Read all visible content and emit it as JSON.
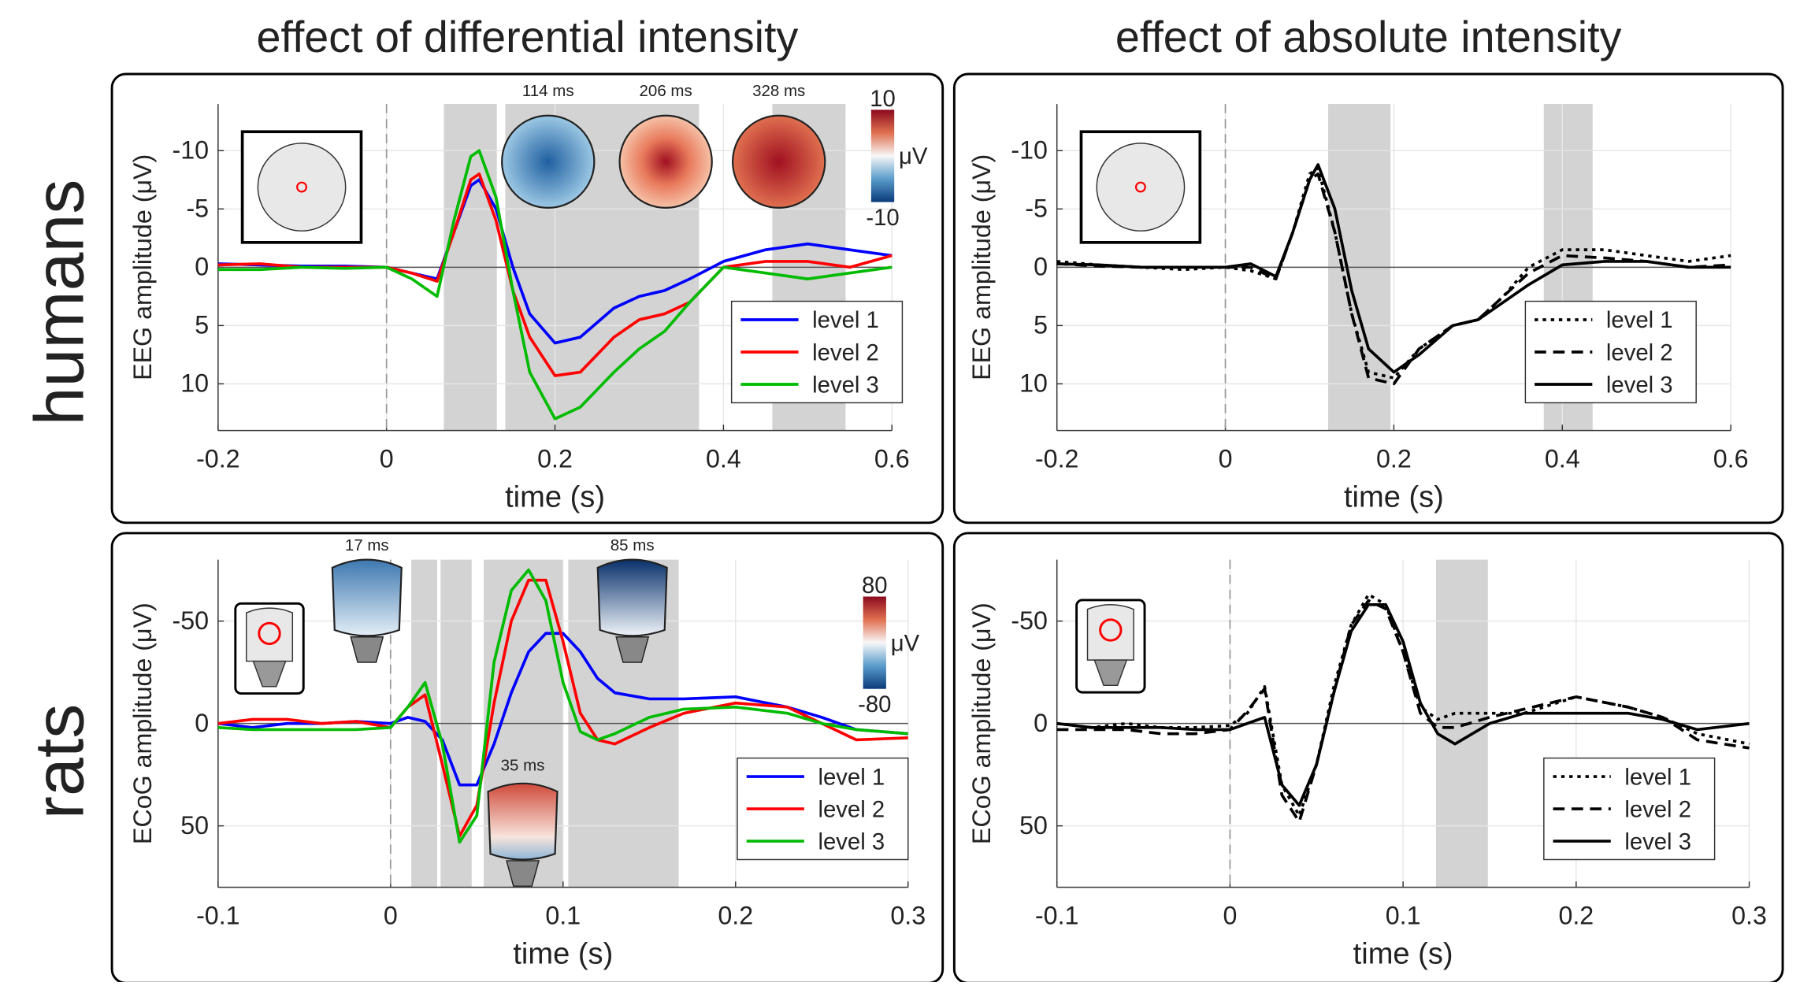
{
  "column_titles": [
    "effect of differential intensity",
    "effect of absolute intensity"
  ],
  "row_labels": [
    "humans",
    "rats"
  ],
  "chart_data": [
    {
      "type": "line",
      "xlabel": "time (s)",
      "ylabel": "EEG amplitude (μV)",
      "xlim": [
        -0.2,
        0.6
      ],
      "xticks": [
        -0.2,
        0,
        0.2,
        0.4,
        0.6
      ],
      "ylim": [
        -14,
        14
      ],
      "yticks": [
        -10,
        -5,
        0,
        5,
        10
      ],
      "y_inverted": true,
      "grid": true,
      "legend": "lower right",
      "shaded": [
        [
          0.068,
          0.131
        ],
        [
          0.141,
          0.371
        ],
        [
          0.458,
          0.545
        ]
      ],
      "annotations": [
        "114 ms",
        "206 ms",
        "328 ms"
      ],
      "colorbar": {
        "label": "μV",
        "ticks": [
          10,
          -10
        ]
      },
      "x": [
        -0.2,
        -0.15,
        -0.1,
        -0.05,
        0,
        0.03,
        0.06,
        0.08,
        0.1,
        0.11,
        0.13,
        0.15,
        0.17,
        0.2,
        0.23,
        0.27,
        0.3,
        0.33,
        0.36,
        0.4,
        0.45,
        0.5,
        0.55,
        0.6
      ],
      "series": [
        {
          "name": "level 1",
          "color": "#0000ff",
          "dash": "solid",
          "values": [
            -0.3,
            -0.2,
            -0.1,
            -0.1,
            0,
            0.5,
            1,
            -3,
            -7,
            -7.5,
            -5,
            0,
            4,
            6.5,
            6,
            3.5,
            2.5,
            2,
            1,
            -0.5,
            -1.5,
            -2,
            -1.5,
            -1
          ]
        },
        {
          "name": "level 2",
          "color": "#ff0000",
          "dash": "solid",
          "values": [
            -0.2,
            -0.3,
            0,
            0,
            0,
            0.5,
            1.2,
            -3,
            -7.5,
            -8,
            -4,
            2,
            6,
            9.3,
            9,
            6,
            4.5,
            4,
            3,
            0,
            -0.5,
            -0.5,
            0,
            -1
          ]
        },
        {
          "name": "level 3",
          "color": "#00bb00",
          "dash": "solid",
          "values": [
            0.2,
            0.2,
            0,
            0.1,
            0,
            1,
            2.5,
            -4,
            -9.5,
            -10,
            -6,
            2,
            9,
            13,
            12,
            9,
            7,
            5.5,
            3,
            0,
            0.5,
            1,
            0.5,
            0
          ]
        }
      ]
    },
    {
      "type": "line",
      "xlabel": "time (s)",
      "ylabel": "EEG amplitude (μV)",
      "xlim": [
        -0.2,
        0.6
      ],
      "xticks": [
        -0.2,
        0,
        0.2,
        0.4,
        0.6
      ],
      "ylim": [
        -14,
        14
      ],
      "yticks": [
        -10,
        -5,
        0,
        5,
        10
      ],
      "y_inverted": true,
      "grid": true,
      "legend": "lower right",
      "shaded": [
        [
          0.122,
          0.196
        ],
        [
          0.378,
          0.436
        ]
      ],
      "x": [
        -0.2,
        -0.15,
        -0.1,
        -0.05,
        0,
        0.03,
        0.06,
        0.08,
        0.1,
        0.11,
        0.13,
        0.15,
        0.17,
        0.2,
        0.23,
        0.27,
        0.3,
        0.33,
        0.36,
        0.4,
        0.45,
        0.5,
        0.55,
        0.6
      ],
      "series": [
        {
          "name": "level 1",
          "color": "#000000",
          "dash": "dotted",
          "values": [
            -0.5,
            -0.2,
            0,
            0.2,
            0,
            0.3,
            1,
            -3,
            -8,
            -8.5,
            -3,
            4,
            9,
            9.5,
            7,
            5,
            4.5,
            2.5,
            0,
            -1.5,
            -1.5,
            -1,
            -0.5,
            -1
          ]
        },
        {
          "name": "level 2",
          "color": "#000000",
          "dash": "dashed",
          "values": [
            -0.3,
            -0.1,
            0,
            0,
            0,
            0,
            1,
            -3,
            -7.5,
            -8,
            -3,
            4,
            9.5,
            10,
            7,
            5,
            4.5,
            2.5,
            0.5,
            -1,
            -0.8,
            -0.5,
            0,
            -0.2
          ]
        },
        {
          "name": "level 3",
          "color": "#000000",
          "dash": "solid",
          "values": [
            -0.3,
            -0.2,
            0,
            0,
            0,
            -0.3,
            0.8,
            -3,
            -7.5,
            -8.8,
            -5,
            2,
            7,
            9,
            7.5,
            5,
            4.5,
            3,
            1.5,
            -0.2,
            -0.5,
            -0.5,
            0,
            0
          ]
        }
      ]
    },
    {
      "type": "line",
      "xlabel": "time (s)",
      "ylabel": "ECoG amplitude (μV)",
      "xlim": [
        -0.1,
        0.3
      ],
      "xticks": [
        -0.1,
        0,
        0.1,
        0.2,
        0.3
      ],
      "ylim": [
        -80,
        80
      ],
      "yticks": [
        -50,
        0,
        50
      ],
      "y_inverted": true,
      "grid": true,
      "legend": "lower right",
      "shaded": [
        [
          0.012,
          0.027
        ],
        [
          0.029,
          0.047
        ],
        [
          0.054,
          0.1
        ],
        [
          0.103,
          0.167
        ]
      ],
      "annotations": [
        "17 ms",
        "85 ms",
        "35 ms"
      ],
      "colorbar": {
        "label": "μV",
        "ticks": [
          80,
          -80
        ]
      },
      "x": [
        -0.1,
        -0.08,
        -0.06,
        -0.04,
        -0.02,
        0,
        0.01,
        0.02,
        0.03,
        0.04,
        0.05,
        0.06,
        0.07,
        0.08,
        0.09,
        0.1,
        0.11,
        0.12,
        0.13,
        0.15,
        0.17,
        0.2,
        0.23,
        0.25,
        0.27,
        0.3
      ],
      "series": [
        {
          "name": "level 1",
          "color": "#0000ff",
          "dash": "solid",
          "values": [
            0,
            2,
            0,
            0,
            -1,
            0,
            -3,
            -1,
            8,
            30,
            30,
            10,
            -15,
            -35,
            -44,
            -44,
            -35,
            -22,
            -15,
            -12,
            -12,
            -13,
            -8,
            -3,
            3,
            5
          ]
        },
        {
          "name": "level 2",
          "color": "#ff0000",
          "dash": "solid",
          "values": [
            0,
            -2,
            -2,
            0,
            -1,
            2,
            -8,
            -14,
            20,
            55,
            40,
            -10,
            -50,
            -70,
            -70,
            -40,
            -5,
            8,
            10,
            2,
            -5,
            -10,
            -8,
            0,
            8,
            7
          ]
        },
        {
          "name": "level 3",
          "color": "#00bb00",
          "dash": "solid",
          "values": [
            2,
            3,
            3,
            3,
            3,
            2,
            -8,
            -20,
            10,
            58,
            45,
            -30,
            -65,
            -75,
            -60,
            -20,
            4,
            8,
            5,
            -3,
            -7,
            -8,
            -5,
            0,
            3,
            5
          ]
        }
      ]
    },
    {
      "type": "line",
      "xlabel": "time (s)",
      "ylabel": "ECoG amplitude (μV)",
      "xlim": [
        -0.1,
        0.3
      ],
      "xticks": [
        -0.1,
        0,
        0.1,
        0.2,
        0.3
      ],
      "ylim": [
        -80,
        80
      ],
      "yticks": [
        -50,
        0,
        50
      ],
      "y_inverted": true,
      "grid": true,
      "legend": "lower right",
      "shaded": [
        [
          0.119,
          0.149
        ]
      ],
      "x": [
        -0.1,
        -0.08,
        -0.06,
        -0.04,
        -0.02,
        0,
        0.01,
        0.02,
        0.03,
        0.04,
        0.05,
        0.06,
        0.07,
        0.08,
        0.09,
        0.1,
        0.11,
        0.12,
        0.13,
        0.15,
        0.17,
        0.2,
        0.23,
        0.25,
        0.27,
        0.3
      ],
      "series": [
        {
          "name": "level 1",
          "color": "#000000",
          "dash": "dotted",
          "values": [
            0,
            2,
            0,
            2,
            2,
            1,
            -5,
            -18,
            30,
            45,
            20,
            -18,
            -48,
            -63,
            -58,
            -35,
            -8,
            -2,
            -5,
            -5,
            -5,
            -13,
            -8,
            -3,
            5,
            10
          ]
        },
        {
          "name": "level 2",
          "color": "#000000",
          "dash": "dashed",
          "values": [
            3,
            3,
            3,
            5,
            5,
            3,
            -6,
            -17,
            35,
            48,
            20,
            -15,
            -48,
            -60,
            -56,
            -35,
            -5,
            2,
            2,
            -3,
            -7,
            -13,
            -8,
            -3,
            8,
            12
          ]
        },
        {
          "name": "level 3",
          "color": "#000000",
          "dash": "solid",
          "values": [
            0,
            2,
            2,
            2,
            3,
            3,
            0,
            -3,
            30,
            40,
            20,
            -15,
            -45,
            -58,
            -58,
            -40,
            -10,
            5,
            10,
            0,
            -5,
            -5,
            -5,
            -2,
            3,
            0
          ]
        }
      ]
    }
  ]
}
